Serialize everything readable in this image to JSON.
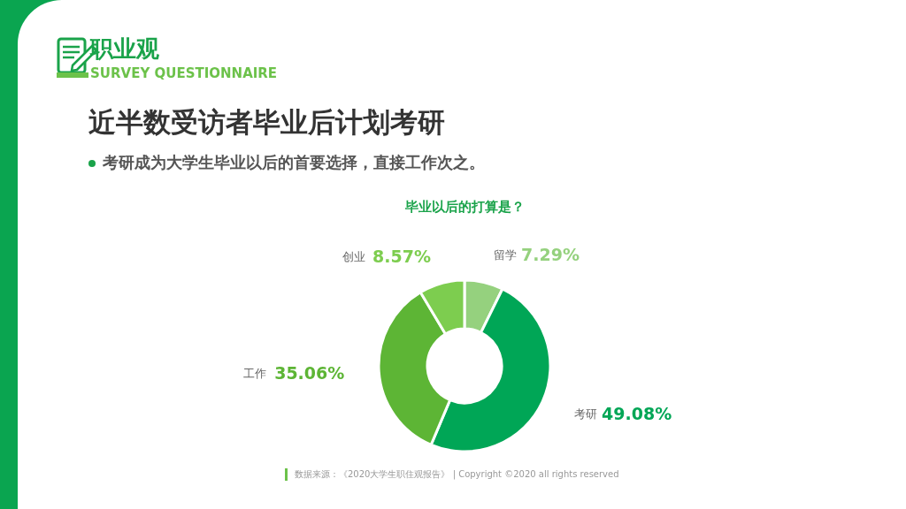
{
  "chart_data": {
    "type": "donut",
    "title": "近半数受访者毕业后计划考研",
    "subtitle": "考研成为大学生毕业以后的首要选择，直接工作次之。",
    "annotations": [
      "职业观",
      "SURVEY QUESTIONNAIRE",
      "毕业以后的打算是？",
      "数据来源：《2020大学生职住观报告》 | Copyright ©2020 all rights reserved"
    ],
    "categories": [
      "留学",
      "考研",
      "工作",
      "创业"
    ],
    "values": [
      7.29,
      49.08,
      35.06,
      8.57
    ],
    "colors": [
      "#95d17e",
      "#00a656",
      "#5db535",
      "#7dcd4f"
    ],
    "value_labels": [
      "7.29%",
      "49.08%",
      "35.06%",
      "8.57%"
    ]
  }
}
